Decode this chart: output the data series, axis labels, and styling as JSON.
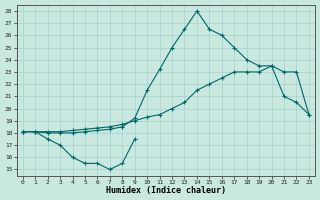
{
  "bg_color": "#c8e8e0",
  "grid_color": "#a8d0cc",
  "line_color": "#006868",
  "xlabel": "Humidex (Indice chaleur)",
  "xlim": [
    -0.5,
    23.5
  ],
  "ylim": [
    14.5,
    28.5
  ],
  "xticks": [
    0,
    1,
    2,
    3,
    4,
    5,
    6,
    7,
    8,
    9,
    10,
    11,
    12,
    13,
    14,
    15,
    16,
    17,
    18,
    19,
    20,
    21,
    22,
    23
  ],
  "yticks": [
    15,
    16,
    17,
    18,
    19,
    20,
    21,
    22,
    23,
    24,
    25,
    26,
    27,
    28
  ],
  "line1_x": [
    0,
    1,
    2,
    3,
    4,
    5,
    6,
    7,
    8,
    9
  ],
  "line1_y": [
    18.1,
    18.1,
    17.5,
    17.0,
    16.0,
    15.5,
    15.5,
    15.0,
    15.5,
    17.5
  ],
  "line2_x": [
    0,
    1,
    2,
    3,
    4,
    5,
    6,
    7,
    8,
    9,
    10,
    11,
    12,
    13,
    14,
    15,
    16,
    17,
    18,
    19,
    20,
    21,
    22,
    23
  ],
  "line2_y": [
    18.1,
    18.1,
    18.0,
    18.0,
    18.0,
    18.1,
    18.2,
    18.3,
    18.5,
    19.2,
    21.5,
    23.2,
    25.0,
    26.5,
    28.0,
    26.5,
    26.0,
    25.0,
    24.0,
    23.5,
    23.5,
    21.0,
    20.5,
    19.5
  ],
  "line3_x": [
    0,
    1,
    2,
    3,
    4,
    5,
    6,
    7,
    8,
    9,
    10,
    11,
    12,
    13,
    14,
    15,
    16,
    17,
    18,
    19,
    20,
    21,
    22,
    23
  ],
  "line3_y": [
    18.1,
    18.1,
    18.1,
    18.1,
    18.2,
    18.3,
    18.4,
    18.5,
    18.7,
    19.0,
    19.3,
    19.5,
    20.0,
    20.5,
    21.5,
    22.0,
    22.5,
    23.0,
    23.0,
    23.0,
    23.5,
    23.0,
    23.0,
    19.5
  ]
}
